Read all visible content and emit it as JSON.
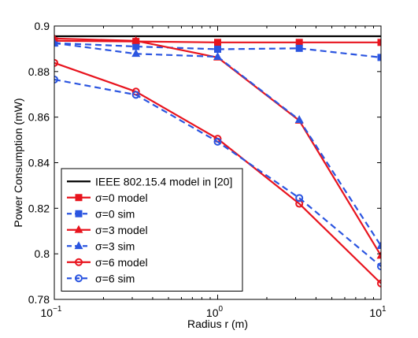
{
  "chart_data": {
    "type": "line",
    "xlabel": "Radius r (m)",
    "ylabel": "Power Consumption (mW)",
    "xscale": "log",
    "xlim": [
      0.1,
      10
    ],
    "ylim": [
      0.78,
      0.9
    ],
    "xticks": [
      {
        "value": 0.1,
        "base": "10",
        "exp": "−1"
      },
      {
        "value": 1,
        "base": "10",
        "exp": "0"
      },
      {
        "value": 10,
        "base": "10",
        "exp": "1"
      }
    ],
    "yticks": [
      0.78,
      0.8,
      0.82,
      0.84,
      0.86,
      0.88,
      0.9
    ],
    "ytick_labels": [
      "0.78",
      "0.8",
      "0.82",
      "0.84",
      "0.86",
      "0.88",
      "0.9"
    ],
    "grid": false,
    "legend_position": "bottom-left",
    "x": [
      0.1,
      0.316,
      1,
      3.16,
      10
    ],
    "series": [
      {
        "name": "IEEE 802.15.4 model in [20]",
        "color": "#000000",
        "dash": "solid",
        "marker": "none",
        "values": [
          0.8955,
          0.8955,
          0.8955,
          0.8955,
          0.8955
        ]
      },
      {
        "name": "σ=0 model",
        "color": "#e8141e",
        "dash": "solid",
        "marker": "square",
        "values": [
          0.8935,
          0.8932,
          0.8928,
          0.8928,
          0.8928
        ]
      },
      {
        "name": "σ=0 sim",
        "color": "#2b55e0",
        "dash": "dashed",
        "marker": "square",
        "values": [
          0.8925,
          0.891,
          0.8898,
          0.8902,
          0.8862
        ]
      },
      {
        "name": "σ=3 model",
        "color": "#e8141e",
        "dash": "solid",
        "marker": "triangle",
        "values": [
          0.8945,
          0.8935,
          0.8862,
          0.8585,
          0.7992
        ]
      },
      {
        "name": "σ=3 sim",
        "color": "#2b55e0",
        "dash": "dashed",
        "marker": "triangle",
        "values": [
          0.8925,
          0.8878,
          0.8865,
          0.8588,
          0.8035
        ]
      },
      {
        "name": "σ=6 model",
        "color": "#e8141e",
        "dash": "solid",
        "marker": "circle",
        "values": [
          0.8838,
          0.8712,
          0.8505,
          0.822,
          0.787
        ]
      },
      {
        "name": "σ=6 sim",
        "color": "#2b55e0",
        "dash": "dashed",
        "marker": "circle",
        "values": [
          0.8765,
          0.8698,
          0.8492,
          0.8245,
          0.7945
        ]
      }
    ]
  }
}
